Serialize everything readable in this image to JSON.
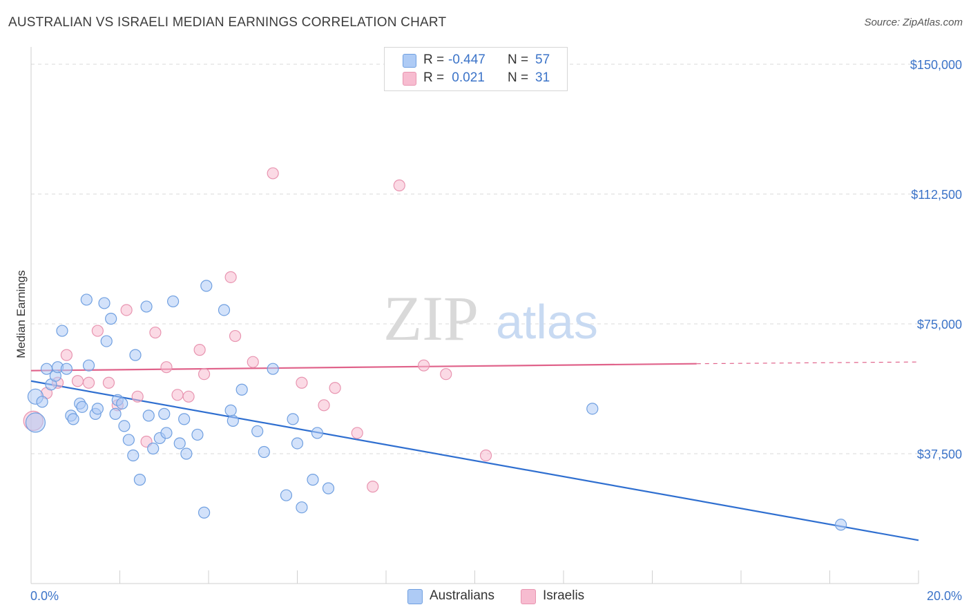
{
  "title": "AUSTRALIAN VS ISRAELI MEDIAN EARNINGS CORRELATION CHART",
  "source": "Source: ZipAtlas.com",
  "watermark": {
    "zip": "ZIP",
    "atlas": "atlas"
  },
  "legend": {
    "rows": [
      {
        "r_label": "R =",
        "r_value": "-0.447",
        "n_label": "N =",
        "n_value": "57",
        "color": "#aecbf5"
      },
      {
        "r_label": "R =",
        "r_value": " 0.021",
        "n_label": "N =",
        "n_value": "31",
        "color": "#f7bcd0"
      }
    ]
  },
  "bottom_legend": [
    {
      "label": "Australians",
      "color": "#aecbf5"
    },
    {
      "label": "Israelis",
      "color": "#f7bcd0"
    }
  ],
  "colors": {
    "blue_fill": "#aecbf5",
    "blue_stroke": "#6f9fe0",
    "blue_line": "#2f6fd0",
    "pink_fill": "#f7bcd0",
    "pink_stroke": "#e894b0",
    "pink_line": "#e0628a",
    "axis_text": "#3b73c8",
    "grid": "#d8d8d8"
  },
  "chart_data": {
    "type": "scatter",
    "xlabel": "",
    "ylabel": "Median Earnings",
    "xlim": [
      0,
      20
    ],
    "ylim": [
      0,
      153000
    ],
    "x_tick_labels": {
      "min": "0.0%",
      "max": "20.0%"
    },
    "y_ticks": [
      {
        "value": 37500,
        "label": "$37,500"
      },
      {
        "value": 75000,
        "label": "$75,000"
      },
      {
        "value": 112500,
        "label": "$112,500"
      },
      {
        "value": 150000,
        "label": "$150,000"
      }
    ],
    "series": [
      {
        "name": "Australians",
        "r": -0.447,
        "n": 57,
        "trend": {
          "x": [
            0,
            20
          ],
          "y": [
            58500,
            12500
          ]
        },
        "points": [
          [
            0.1,
            54000
          ],
          [
            0.1,
            46500
          ],
          [
            0.25,
            52500
          ],
          [
            0.35,
            62000
          ],
          [
            0.45,
            57500
          ],
          [
            0.55,
            60000
          ],
          [
            0.6,
            62500
          ],
          [
            0.7,
            73000
          ],
          [
            0.8,
            62000
          ],
          [
            0.9,
            48500
          ],
          [
            0.95,
            47500
          ],
          [
            1.1,
            52000
          ],
          [
            1.15,
            51000
          ],
          [
            1.25,
            82000
          ],
          [
            1.3,
            63000
          ],
          [
            1.45,
            49000
          ],
          [
            1.5,
            50500
          ],
          [
            1.65,
            81000
          ],
          [
            1.7,
            70000
          ],
          [
            1.8,
            76500
          ],
          [
            1.9,
            49000
          ],
          [
            1.95,
            53000
          ],
          [
            2.05,
            52000
          ],
          [
            2.1,
            45500
          ],
          [
            2.2,
            41500
          ],
          [
            2.3,
            37000
          ],
          [
            2.35,
            66000
          ],
          [
            2.45,
            30000
          ],
          [
            2.6,
            80000
          ],
          [
            2.65,
            48500
          ],
          [
            2.75,
            39000
          ],
          [
            2.9,
            42000
          ],
          [
            3.0,
            49000
          ],
          [
            3.05,
            43500
          ],
          [
            3.2,
            81500
          ],
          [
            3.35,
            40500
          ],
          [
            3.45,
            47500
          ],
          [
            3.5,
            37500
          ],
          [
            3.75,
            43000
          ],
          [
            3.9,
            20500
          ],
          [
            3.95,
            86000
          ],
          [
            4.35,
            79000
          ],
          [
            4.5,
            50000
          ],
          [
            4.55,
            47000
          ],
          [
            4.75,
            56000
          ],
          [
            5.1,
            44000
          ],
          [
            5.25,
            38000
          ],
          [
            5.45,
            62000
          ],
          [
            5.75,
            25500
          ],
          [
            5.9,
            47500
          ],
          [
            6.0,
            40500
          ],
          [
            6.1,
            22000
          ],
          [
            6.35,
            30000
          ],
          [
            6.45,
            43500
          ],
          [
            6.7,
            27500
          ],
          [
            12.65,
            50500
          ],
          [
            18.25,
            17000
          ]
        ]
      },
      {
        "name": "Israelis",
        "r": 0.021,
        "n": 31,
        "trend": {
          "x": [
            0,
            15
          ],
          "y": [
            61500,
            63500
          ]
        },
        "trend_extension": {
          "x": [
            15,
            20
          ],
          "y": [
            63500,
            64000
          ]
        },
        "points": [
          [
            0.05,
            47000
          ],
          [
            0.35,
            55000
          ],
          [
            0.6,
            58000
          ],
          [
            0.8,
            66000
          ],
          [
            1.05,
            58500
          ],
          [
            1.3,
            58000
          ],
          [
            1.5,
            73000
          ],
          [
            1.75,
            58000
          ],
          [
            1.95,
            51500
          ],
          [
            2.15,
            79000
          ],
          [
            2.4,
            54000
          ],
          [
            2.6,
            41000
          ],
          [
            2.8,
            72500
          ],
          [
            3.05,
            62500
          ],
          [
            3.3,
            54500
          ],
          [
            3.55,
            54000
          ],
          [
            3.8,
            67500
          ],
          [
            3.9,
            60500
          ],
          [
            4.5,
            88500
          ],
          [
            4.6,
            71500
          ],
          [
            5.0,
            64000
          ],
          [
            5.45,
            118500
          ],
          [
            6.1,
            58000
          ],
          [
            6.6,
            51500
          ],
          [
            6.85,
            56500
          ],
          [
            7.35,
            43500
          ],
          [
            7.7,
            28000
          ],
          [
            8.3,
            115000
          ],
          [
            8.85,
            63000
          ],
          [
            9.35,
            60500
          ],
          [
            10.25,
            37000
          ]
        ]
      }
    ]
  }
}
